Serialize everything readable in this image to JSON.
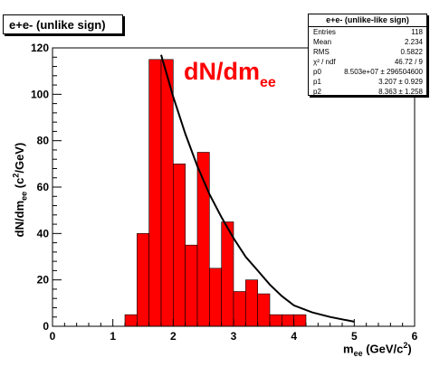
{
  "chart_data": {
    "type": "bar",
    "title": "e+e- (unlike sign)",
    "annotation": {
      "main": "dN/dm",
      "sub": "ee",
      "color": "#ff0000"
    },
    "xlabel": {
      "pre": "m",
      "sub": "ee",
      "mid": " (GeV/c",
      "sup": "2",
      "post": ")"
    },
    "ylabel": {
      "pre": "dN/dm",
      "sub": "ee",
      "mid": " (c",
      "sup": "2",
      "post": "/GeV)"
    },
    "xlim": [
      0,
      6
    ],
    "ylim": [
      0,
      120
    ],
    "xticks": [
      "0",
      "1",
      "2",
      "3",
      "4",
      "5",
      "6"
    ],
    "yticks": [
      "0",
      "20",
      "40",
      "60",
      "80",
      "100",
      "120"
    ],
    "bin_width": 0.2,
    "bins": [
      {
        "x0": 1.2,
        "value": 5
      },
      {
        "x0": 1.4,
        "value": 40
      },
      {
        "x0": 1.6,
        "value": 115
      },
      {
        "x0": 1.8,
        "value": 115
      },
      {
        "x0": 2.0,
        "value": 70
      },
      {
        "x0": 2.2,
        "value": 35
      },
      {
        "x0": 2.4,
        "value": 75
      },
      {
        "x0": 2.6,
        "value": 25
      },
      {
        "x0": 2.8,
        "value": 45
      },
      {
        "x0": 3.0,
        "value": 15
      },
      {
        "x0": 3.2,
        "value": 20
      },
      {
        "x0": 3.4,
        "value": 14
      },
      {
        "x0": 3.6,
        "value": 5
      },
      {
        "x0": 3.8,
        "value": 5
      },
      {
        "x0": 4.0,
        "value": 5
      }
    ],
    "bar_color": "#ff0000",
    "fit": {
      "function": "p0*exp(-x/p1)+p2 style falling fit",
      "x_range": [
        1.8,
        5.0
      ],
      "points": [
        {
          "x": 1.8,
          "y": 117
        },
        {
          "x": 2.0,
          "y": 99
        },
        {
          "x": 2.2,
          "y": 83
        },
        {
          "x": 2.4,
          "y": 69
        },
        {
          "x": 2.6,
          "y": 57
        },
        {
          "x": 2.8,
          "y": 47
        },
        {
          "x": 3.0,
          "y": 38
        },
        {
          "x": 3.2,
          "y": 30
        },
        {
          "x": 3.4,
          "y": 24
        },
        {
          "x": 3.6,
          "y": 18
        },
        {
          "x": 3.8,
          "y": 13
        },
        {
          "x": 4.0,
          "y": 9
        },
        {
          "x": 4.3,
          "y": 6
        },
        {
          "x": 4.6,
          "y": 4
        },
        {
          "x": 5.0,
          "y": 2
        }
      ],
      "color": "#000000"
    },
    "stats": {
      "header": "e+e- (unlike-like sign)",
      "rows": [
        {
          "key": "Entries",
          "value": "118"
        },
        {
          "key": "Mean",
          "value": "2.234"
        },
        {
          "key": "RMS",
          "value": "0.5822"
        },
        {
          "key": "χ² / ndf",
          "value": "46.72 / 9"
        },
        {
          "key": "p0",
          "value": "8.503e+07 ± 296504600"
        },
        {
          "key": "p1",
          "value": "3.207 ± 0.929"
        },
        {
          "key": "p2",
          "value": "8.363 ± 1.258"
        }
      ]
    }
  }
}
